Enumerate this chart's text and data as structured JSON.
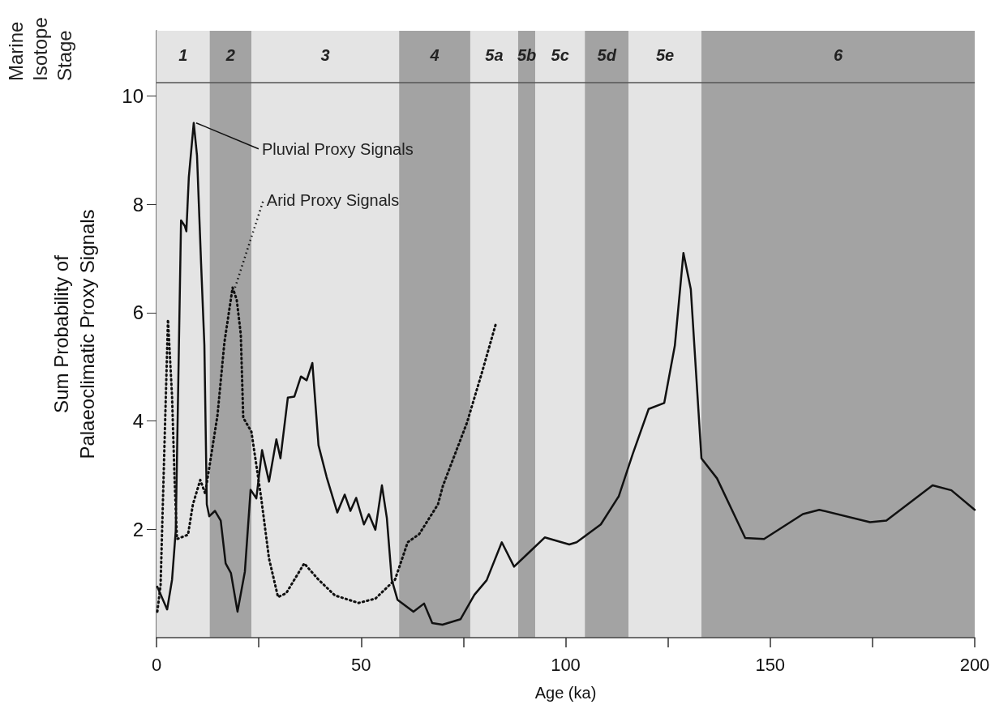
{
  "chart_data": {
    "type": "line",
    "xlabel": "Age (ka)",
    "ylabel": "Sum Probability of\nPalaeoclimatic Proxy Signals",
    "xlim": [
      0,
      200
    ],
    "xticks": [
      0,
      {
        "value": 25,
        "label": null
      },
      50,
      {
        "value": 75,
        "label": null
      },
      100,
      {
        "value": 125,
        "label": null
      },
      150,
      {
        "value": 175,
        "label": null
      },
      200
    ],
    "ylim": [
      0,
      11.2
    ],
    "yticks": [
      2,
      4,
      6,
      8,
      10
    ],
    "grid": false,
    "marker": "none",
    "series": [
      {
        "color": "#111111",
        "line_style": "solid",
        "x": [
          0.2,
          2.6,
          3.8,
          4.7,
          6,
          6.9,
          7.3,
          7.9,
          9.1,
          9.9,
          10.9,
          11.7,
          12.3,
          12.9,
          14.3,
          15.7,
          16.9,
          18.2,
          19.8,
          21.6,
          23,
          24.4,
          25.8,
          27.5,
          29.3,
          30.3,
          32.1,
          33.7,
          35.3,
          36.7,
          38.1,
          39.6,
          41.6,
          44.2,
          46,
          47.4,
          48.8,
          50.7,
          51.9,
          53.5,
          55.1,
          56.3,
          57.5,
          58.9,
          62.8,
          65.4,
          67.4,
          69.9,
          74.3,
          77.7,
          80.7,
          84.4,
          87.4,
          90.6,
          94.9,
          100.9,
          102.7,
          108.6,
          113,
          116.4,
          120.3,
          124.1,
          126.7,
          128.8,
          130.6,
          133.2,
          137,
          143.9,
          148.5,
          158,
          162,
          174.4,
          178.4,
          189.7,
          194.3,
          200
        ],
        "values": [
          0.94,
          0.52,
          1.07,
          1.97,
          7.7,
          7.6,
          7.5,
          8.5,
          9.5,
          8.9,
          6.9,
          5.4,
          2.46,
          2.24,
          2.34,
          2.16,
          1.37,
          1.19,
          0.48,
          1.22,
          2.73,
          2.57,
          3.46,
          2.88,
          3.66,
          3.31,
          4.43,
          4.45,
          4.82,
          4.75,
          5.07,
          3.55,
          2.96,
          2.31,
          2.64,
          2.34,
          2.58,
          2.09,
          2.28,
          1.99,
          2.81,
          2.21,
          1.07,
          0.7,
          0.48,
          0.63,
          0.27,
          0.24,
          0.34,
          0.79,
          1.06,
          1.76,
          1.31,
          1.54,
          1.85,
          1.72,
          1.76,
          2.09,
          2.61,
          3.39,
          4.22,
          4.33,
          5.39,
          7.1,
          6.43,
          3.31,
          2.94,
          1.84,
          1.82,
          2.28,
          2.36,
          2.13,
          2.16,
          2.81,
          2.72,
          2.36
        ]
      },
      {
        "color": "#111111",
        "line_style": "dotted",
        "x": [
          0.2,
          1,
          2.8,
          3.8,
          4.4,
          5,
          7.7,
          8.9,
          10.7,
          11.9,
          14.9,
          16.6,
          18.6,
          19.6,
          20.6,
          21.2,
          23.2,
          25.6,
          27.5,
          29.7,
          31.7,
          36.1,
          39.6,
          43.6,
          49.4,
          53.5,
          58.3,
          61.4,
          64.2,
          68.8,
          70,
          75.9,
          79.5,
          82.9
        ],
        "values": [
          0.48,
          0.97,
          5.87,
          4.45,
          2.96,
          1.82,
          1.9,
          2.46,
          2.91,
          2.66,
          4.1,
          5.45,
          6.46,
          6.24,
          5.6,
          4.06,
          3.8,
          2.57,
          1.46,
          0.75,
          0.82,
          1.37,
          1.07,
          0.78,
          0.64,
          0.72,
          1.07,
          1.76,
          1.91,
          2.46,
          2.8,
          3.97,
          4.88,
          5.78
        ]
      }
    ],
    "bands": [
      {
        "axis": "x",
        "from": 0,
        "to": 13,
        "label": "1",
        "color": "#e4e4e4"
      },
      {
        "axis": "x",
        "from": 13,
        "to": 23.2,
        "label": "2",
        "color": "#a3a3a3"
      },
      {
        "axis": "x",
        "from": 23.2,
        "to": 59.3,
        "label": "3",
        "color": "#e4e4e4"
      },
      {
        "axis": "x",
        "from": 59.3,
        "to": 76.7,
        "label": "4",
        "color": "#a3a3a3"
      },
      {
        "axis": "x",
        "from": 76.7,
        "to": 88.4,
        "label": "5a",
        "color": "#e4e4e4"
      },
      {
        "axis": "x",
        "from": 88.4,
        "to": 92.6,
        "label": "5b",
        "color": "#a3a3a3"
      },
      {
        "axis": "x",
        "from": 92.6,
        "to": 104.7,
        "label": "5c",
        "color": "#e4e4e4"
      },
      {
        "axis": "x",
        "from": 104.7,
        "to": 115.4,
        "label": "5d",
        "color": "#a3a3a3"
      },
      {
        "axis": "x",
        "from": 115.4,
        "to": 133.2,
        "label": "5e",
        "color": "#e4e4e4"
      },
      {
        "axis": "x",
        "from": 133.2,
        "to": 200,
        "label": "6",
        "color": "#a3a3a3"
      }
    ],
    "ref_lines": [
      {
        "axis": "y",
        "value": 10.25,
        "color": "#555555"
      }
    ],
    "annotations": [
      {
        "text": "Pluvial Proxy Signals",
        "x": 9.1,
        "y": 9.5
      },
      {
        "text": "Arid Proxy Signals",
        "x": 18.6,
        "y": 6.46
      },
      "Marine Isotope Stage"
    ]
  }
}
